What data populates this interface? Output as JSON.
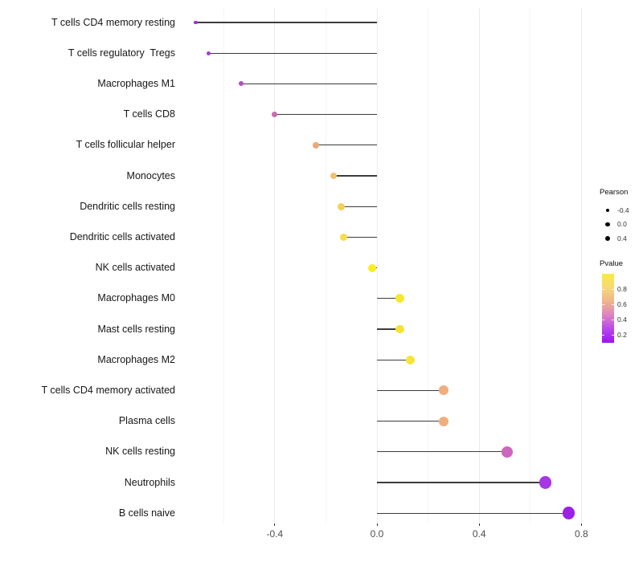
{
  "chart_data": {
    "type": "lollipop",
    "title": "",
    "xlabel": "",
    "ylabel": "",
    "background": "#ffffff",
    "grid": {
      "vertical_only": true,
      "major_values": [
        -0.4,
        0.0,
        0.4,
        0.8
      ],
      "minor_values": [
        -0.6,
        -0.2,
        0.2,
        0.6
      ],
      "major_color": "#ebebeb",
      "minor_color": "#f5f5f5"
    },
    "x_axis": {
      "tick_values": [
        -0.4,
        0.0,
        0.4,
        0.8
      ],
      "tick_labels": [
        "-0.4",
        "0.0",
        "0.4",
        "0.8"
      ],
      "xlim": [
        -0.72,
        0.92
      ]
    },
    "categories": [
      "T cells CD4 memory resting",
      "T cells regulatory  Tregs",
      "Macrophages M1",
      "T cells CD8",
      "T cells follicular helper",
      "Monocytes",
      "Dendritic cells resting",
      "Dendritic cells activated",
      "NK cells activated",
      "Macrophages M0",
      "Mast cells resting",
      "Macrophages M2",
      "T cells CD4 memory activated",
      "Plasma cells",
      "NK cells resting",
      "Neutrophils",
      "B cells naive"
    ],
    "series": [
      {
        "name": "Pearson",
        "values": [
          -0.71,
          -0.66,
          -0.53,
          -0.4,
          -0.24,
          -0.17,
          -0.14,
          -0.13,
          -0.02,
          0.09,
          0.09,
          0.13,
          0.26,
          0.26,
          0.51,
          0.66,
          0.75
        ]
      },
      {
        "name": "Pvalue",
        "values": [
          0.2,
          0.25,
          0.32,
          0.42,
          0.62,
          0.68,
          0.75,
          0.8,
          0.92,
          0.87,
          0.85,
          0.86,
          0.62,
          0.62,
          0.42,
          0.25,
          0.15
        ]
      }
    ],
    "point_colors": [
      "#9B32D8",
      "#A13AD3",
      "#B44CC6",
      "#C76CB4",
      "#E9A979",
      "#F2C16E",
      "#F5CF5B",
      "#F6DC4B",
      "#FAED22",
      "#F7E72E",
      "#F6E233",
      "#F6E63A",
      "#EFAE7E",
      "#EFAE7E",
      "#CC67BD",
      "#A637E3",
      "#9B20E8"
    ],
    "stem_color": "#3c3c3c",
    "legend": {
      "size": {
        "title": "Pearson",
        "circle_color": "#000000",
        "entries": [
          {
            "label": "-0.4",
            "value": -0.4
          },
          {
            "label": "0.0",
            "value": 0.0
          },
          {
            "label": "0.4",
            "value": 0.4
          }
        ]
      },
      "color": {
        "title": "Pvalue",
        "tick_labels": [
          "0.8",
          "0.6",
          "0.4",
          "0.2"
        ],
        "tick_values": [
          0.8,
          0.6,
          0.4,
          0.2
        ],
        "domain_top": 1.0,
        "domain_bottom": 0.1,
        "gradient_top_to_bottom": [
          "#FAEB3F",
          "#F7D878",
          "#F0B58B",
          "#DC83C4",
          "#B747EC",
          "#9B13F2"
        ]
      }
    }
  }
}
